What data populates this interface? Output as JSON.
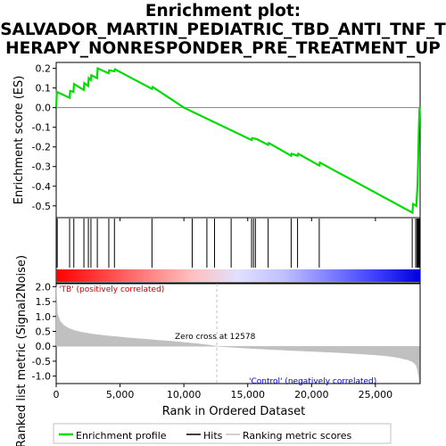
{
  "title_lines": [
    "Enrichment plot:",
    "SALVADOR_MARTIN_PEDIATRIC_TBD_ANTI_TNF_T",
    "HERAPY_NONRESPONDER_PRE_TREATMENT_UP"
  ],
  "colors": {
    "es_line": "#00dd00",
    "hits": "#000000",
    "metric_fill": "#c0c0c0",
    "zero_cross": "#c0c0c0",
    "pos_label": "#cc0000",
    "neg_label": "#0000cc"
  },
  "annotations": {
    "positive": "'TB' (positively correlated)",
    "negative": "'Control' (negatively correlated)",
    "zero_cross": "Zero cross at 12578"
  },
  "legend": {
    "items": [
      {
        "label": "Enrichment profile",
        "color": "#00dd00",
        "style": "line"
      },
      {
        "label": "Hits",
        "color": "#000000",
        "style": "line"
      },
      {
        "label": "Ranking metric scores",
        "color": "#c0c0c0",
        "style": "line"
      }
    ]
  },
  "chart_data": {
    "type": "line",
    "xlabel": "Rank in Ordered Dataset",
    "x_ticks": [
      0,
      5000,
      10000,
      15000,
      20000,
      25000
    ],
    "x_tick_labels": [
      "0",
      "5,000",
      "10,000",
      "15,000",
      "20,000",
      "25,000"
    ],
    "xlim": [
      0,
      28500
    ],
    "zero_cross": 12578,
    "enrichment": {
      "ylabel": "Enrichment score (ES)",
      "ylim": [
        -0.56,
        0.23
      ],
      "y_ticks": [
        -0.5,
        -0.4,
        -0.3,
        -0.2,
        -0.1,
        0.0,
        0.1,
        0.2
      ],
      "y_tick_labels": [
        "-0.5",
        "-0.4",
        "-0.3",
        "-0.2",
        "-0.1",
        "0.0",
        "0.1",
        "0.2"
      ],
      "x": [
        0,
        50,
        1050,
        1100,
        1350,
        1400,
        2150,
        2200,
        2500,
        2550,
        2700,
        2750,
        3200,
        3250,
        4100,
        4150,
        4550,
        4600,
        7500,
        7550,
        10000,
        15300,
        15350,
        15700,
        16600,
        16650,
        18400,
        18450,
        18900,
        18950,
        20600,
        20650,
        27900,
        27950,
        28200,
        28250,
        28300,
        28350,
        28400,
        28450
      ],
      "y": [
        0.0,
        0.08,
        0.05,
        0.085,
        0.08,
        0.12,
        0.09,
        0.125,
        0.11,
        0.15,
        0.14,
        0.165,
        0.15,
        0.2,
        0.175,
        0.19,
        0.185,
        0.195,
        0.095,
        0.105,
        0.0,
        -0.165,
        -0.155,
        -0.16,
        -0.19,
        -0.18,
        -0.245,
        -0.235,
        -0.245,
        -0.235,
        -0.295,
        -0.28,
        -0.535,
        -0.49,
        -0.5,
        -0.45,
        -0.39,
        -0.25,
        -0.1,
        0.0
      ]
    },
    "hits": [
      80,
      1050,
      1380,
      2170,
      2520,
      2720,
      3220,
      4120,
      4560,
      7500,
      10650,
      11800,
      12400,
      13700,
      15300,
      15450,
      15600,
      16600,
      18400,
      18900,
      20600,
      27880,
      28150,
      28250,
      28320,
      28380,
      28430
    ],
    "ranking_metric": {
      "ylabel": "Ranked list metric (Signal2Noise)",
      "ylim": [
        -1.25,
        2.1
      ],
      "y_ticks": [
        -1.0,
        -0.5,
        0.0,
        0.5,
        1.0,
        1.5,
        2.0
      ],
      "y_tick_labels": [
        "-1.0",
        "-0.5",
        "0.0",
        "0.5",
        "1.0",
        "1.5",
        "2.0"
      ],
      "x": [
        0,
        100,
        300,
        600,
        1000,
        1500,
        2000,
        3000,
        4000,
        5000,
        6000,
        7000,
        8000,
        9000,
        10000,
        11000,
        12000,
        12578,
        14000,
        16000,
        18000,
        20000,
        22000,
        24000,
        25000,
        26000,
        26500,
        27000,
        27500,
        27800,
        28000,
        28200,
        28300,
        28400,
        28450
      ],
      "y": [
        2.0,
        1.1,
        0.85,
        0.7,
        0.6,
        0.52,
        0.47,
        0.4,
        0.35,
        0.31,
        0.27,
        0.24,
        0.2,
        0.17,
        0.13,
        0.09,
        0.04,
        0.0,
        -0.04,
        -0.09,
        -0.13,
        -0.17,
        -0.21,
        -0.26,
        -0.29,
        -0.33,
        -0.36,
        -0.4,
        -0.45,
        -0.5,
        -0.55,
        -0.65,
        -0.8,
        -1.05,
        -1.2
      ]
    },
    "color_bar_stops": [
      "#ff0000",
      "#ff4040",
      "#ff8080",
      "#ffc0c0",
      "#e0e0ff",
      "#c0c0ff",
      "#8080ff",
      "#4040ff",
      "#0000dd"
    ]
  }
}
